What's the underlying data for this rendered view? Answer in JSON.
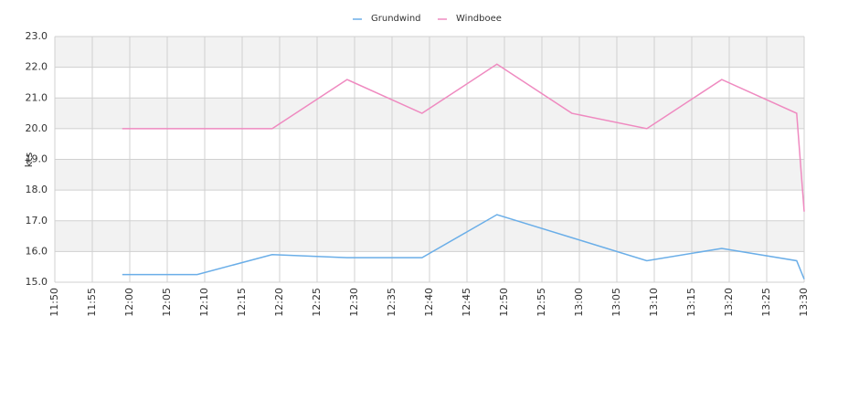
{
  "chart_data": {
    "type": "line",
    "ylabel": "kts",
    "x": [
      "11:59",
      "12:09",
      "12:19",
      "12:29",
      "12:39",
      "12:49",
      "12:59",
      "13:09",
      "13:19",
      "13:29",
      "13:30"
    ],
    "series": [
      {
        "name": "Grundwind",
        "color": "#6aaee8",
        "values": [
          15.25,
          15.25,
          15.9,
          15.8,
          15.8,
          17.2,
          16.45,
          15.7,
          16.1,
          15.7,
          15.1
        ]
      },
      {
        "name": "Windboee",
        "color": "#ef8ac0",
        "values": [
          20.0,
          20.0,
          20.0,
          21.6,
          20.5,
          22.1,
          20.5,
          20.0,
          21.6,
          20.5,
          17.3
        ]
      }
    ],
    "xlim": [
      "11:50",
      "13:30"
    ],
    "xticks": [
      "11:50",
      "11:55",
      "12:00",
      "12:05",
      "12:10",
      "12:15",
      "12:20",
      "12:25",
      "12:30",
      "12:35",
      "12:40",
      "12:45",
      "12:50",
      "12:55",
      "13:00",
      "13:05",
      "13:10",
      "13:15",
      "13:20",
      "13:25",
      "13:30"
    ],
    "ylim": [
      15,
      23
    ],
    "yticks": [
      {
        "value": 15,
        "label": "15.0"
      },
      {
        "value": 16,
        "label": "16.0"
      },
      {
        "value": 17,
        "label": "17.0"
      },
      {
        "value": 18,
        "label": "18.0"
      },
      {
        "value": 19,
        "label": "19.0"
      },
      {
        "value": 20,
        "label": "20.0"
      },
      {
        "value": 21,
        "label": "21.0"
      },
      {
        "value": 22,
        "label": "22.0"
      },
      {
        "value": 23,
        "label": "23.0"
      }
    ],
    "grid": true,
    "legend": "top"
  }
}
